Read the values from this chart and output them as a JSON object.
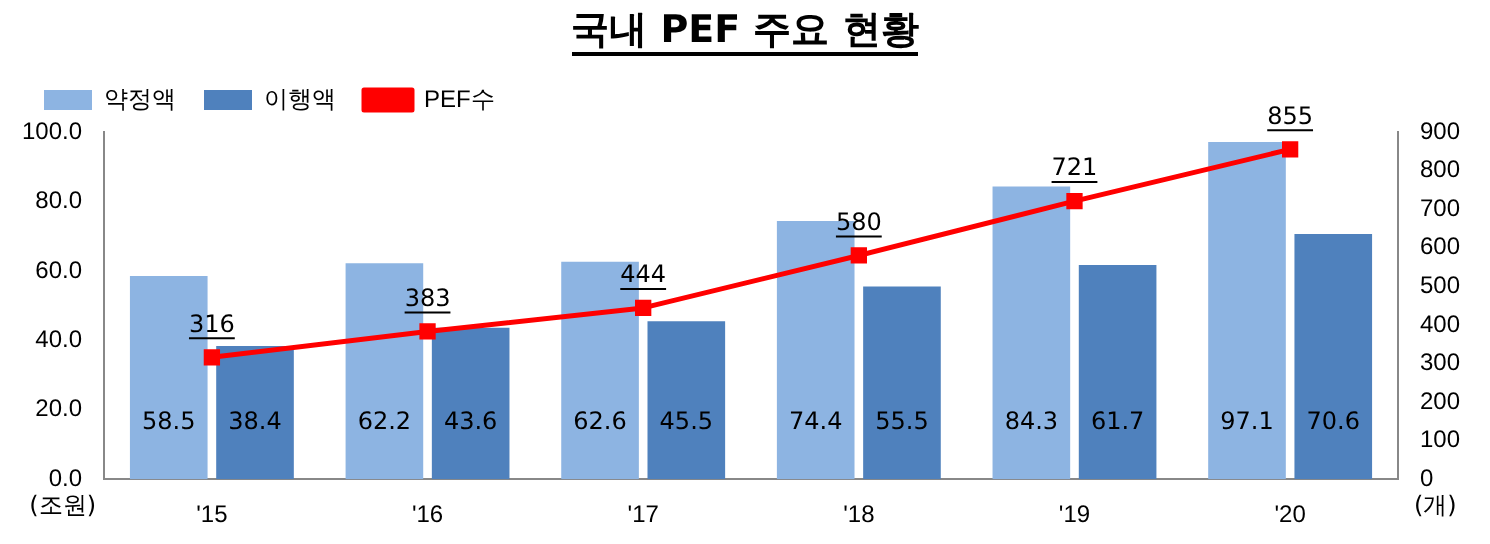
{
  "chart_data": {
    "type": "bar",
    "title": "국내 PEF 주요 현황",
    "ylabel": "(조원)",
    "y2label": "(개)",
    "categories": [
      "'15",
      "'16",
      "'17",
      "'18",
      "'19",
      "'20"
    ],
    "series": [
      {
        "name": "약정액",
        "color": "#8db4e2",
        "values": [
          58.5,
          62.2,
          62.6,
          74.4,
          84.3,
          97.1
        ]
      },
      {
        "name": "이행액",
        "color": "#4f81bd",
        "values": [
          38.4,
          43.6,
          45.5,
          55.5,
          61.7,
          70.6
        ]
      },
      {
        "name": "PEF수",
        "type": "line",
        "axis": "y2",
        "color": "#ff0000",
        "marker": "square",
        "values": [
          316,
          383,
          444,
          580,
          721,
          855
        ]
      }
    ],
    "ylim": [
      0,
      100
    ],
    "yticks": [
      {
        "value": 0,
        "label": "0.0"
      },
      {
        "value": 20,
        "label": "20.0"
      },
      {
        "value": 40,
        "label": "40.0"
      },
      {
        "value": 60,
        "label": "60.0"
      },
      {
        "value": 80,
        "label": "80.0"
      },
      {
        "value": 100,
        "label": "100.0"
      }
    ],
    "y2lim": [
      0,
      900
    ],
    "y2ticks": [
      0,
      100,
      200,
      300,
      400,
      500,
      600,
      700,
      800,
      900
    ],
    "data_labels": true,
    "grid": false,
    "legend": "top left"
  }
}
